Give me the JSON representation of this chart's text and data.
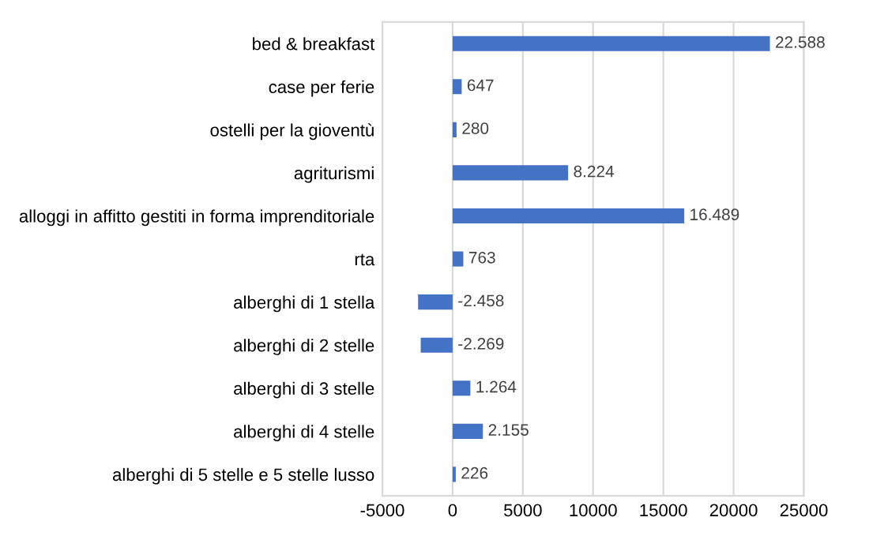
{
  "chart_data": {
    "type": "bar",
    "orientation": "horizontal",
    "categories": [
      "bed & breakfast",
      "case per ferie",
      "ostelli per la gioventù",
      "agriturismi",
      "alloggi in affitto gestiti in forma imprenditoriale",
      "rta",
      "alberghi di 1 stella",
      "alberghi di 2 stelle",
      "alberghi di 3 stelle",
      "alberghi di 4 stelle",
      "alberghi di 5 stelle e 5 stelle lusso"
    ],
    "values": [
      22588,
      647,
      280,
      8224,
      16489,
      763,
      -2458,
      -2269,
      1264,
      2155,
      226
    ],
    "value_labels": [
      "22.588",
      "647",
      "280",
      "8.224",
      "16.489",
      "763",
      "-2.458",
      "-2.269",
      "1.264",
      "2.155",
      "226"
    ],
    "color": "#4472c4",
    "xlim": [
      -5000,
      25000
    ],
    "xticks": [
      {
        "value": -5000,
        "label": "-5000"
      },
      0,
      5000,
      10000,
      15000,
      20000,
      25000
    ],
    "grid": "x",
    "legend": false
  }
}
